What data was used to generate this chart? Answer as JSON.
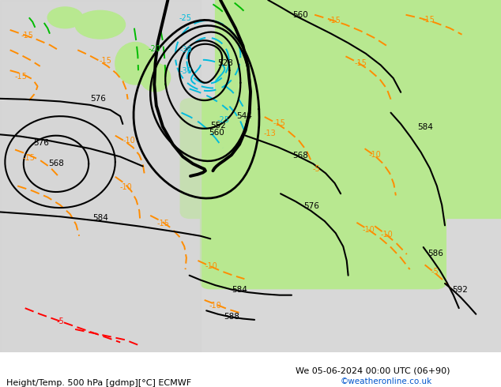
{
  "title_left": "Height/Temp. 500 hPa [gdmp][°C] ECMWF",
  "title_right": "We 05-06-2024 00:00 UTC (06+90)",
  "credit": "©weatheronline.co.uk",
  "bg_color": "#ffffff",
  "map_light_green": "#b8e890",
  "map_gray": "#c8c8c8",
  "map_light_gray": "#e0e0e0",
  "height_color": "#000000",
  "temp_orange": "#ff8c00",
  "temp_cyan": "#00bbdd",
  "temp_green": "#00bb00",
  "temp_red": "#ff0000",
  "figsize": [
    6.34,
    4.9
  ],
  "dpi": 100
}
